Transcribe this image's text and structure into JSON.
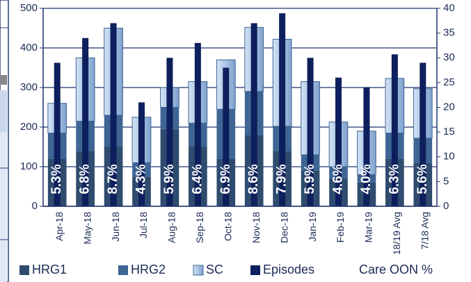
{
  "chart_data": {
    "type": "bar",
    "categories": [
      "Apr-18",
      "May-18",
      "Jun-18",
      "Jul-18",
      "Aug-18",
      "Sep-18",
      "Oct-18",
      "Nov-18",
      "Dec-18",
      "Jan-19",
      "Feb-19",
      "Mar-19",
      "18/19 Avg",
      "7/18 Avg"
    ],
    "series": [
      {
        "name": "HRG1",
        "color": "#2f4b6e",
        "values": [
          120,
          140,
          150,
          75,
          195,
          150,
          120,
          180,
          140,
          90,
          70,
          60,
          120,
          110
        ]
      },
      {
        "name": "HRG2",
        "color": "#3e6594",
        "values": [
          65,
          75,
          80,
          35,
          55,
          60,
          125,
          110,
          62,
          40,
          30,
          20,
          65,
          62
        ]
      },
      {
        "name": "SC",
        "color": "#a9c4e4",
        "values": [
          75,
          160,
          220,
          115,
          50,
          105,
          125,
          162,
          220,
          185,
          113,
          110,
          138,
          125
        ]
      },
      {
        "name": "Episodes",
        "color": "#0d1f5c",
        "axis": "y2",
        "values": [
          29,
          34,
          37,
          21,
          30,
          33,
          28,
          37,
          39,
          30,
          26,
          24,
          30.7,
          29
        ]
      },
      {
        "name": "Care OON %",
        "color": "#ffffff",
        "values": [
          5.3,
          6.8,
          8.7,
          4.3,
          5.9,
          6.4,
          6.9,
          8.6,
          7.9,
          5.9,
          4.6,
          4.0,
          6.3,
          5.6
        ],
        "value_labels": [
          "5.3%",
          "6.8%",
          "8.7%",
          "4.3%",
          "5.9%",
          "6.4%",
          "6.9%",
          "8.6%",
          "7.9%",
          "5.9%",
          "4.6%",
          "4.0%",
          "6.3%",
          "5.6%"
        ]
      }
    ],
    "ylim": [
      0,
      500
    ],
    "yticks": [
      0,
      100,
      200,
      300,
      400,
      500
    ],
    "y2lim": [
      0,
      40
    ],
    "y2ticks": [
      0,
      5,
      10,
      15,
      20,
      25,
      30,
      35,
      40
    ],
    "grid": true,
    "legend": "bottom"
  }
}
